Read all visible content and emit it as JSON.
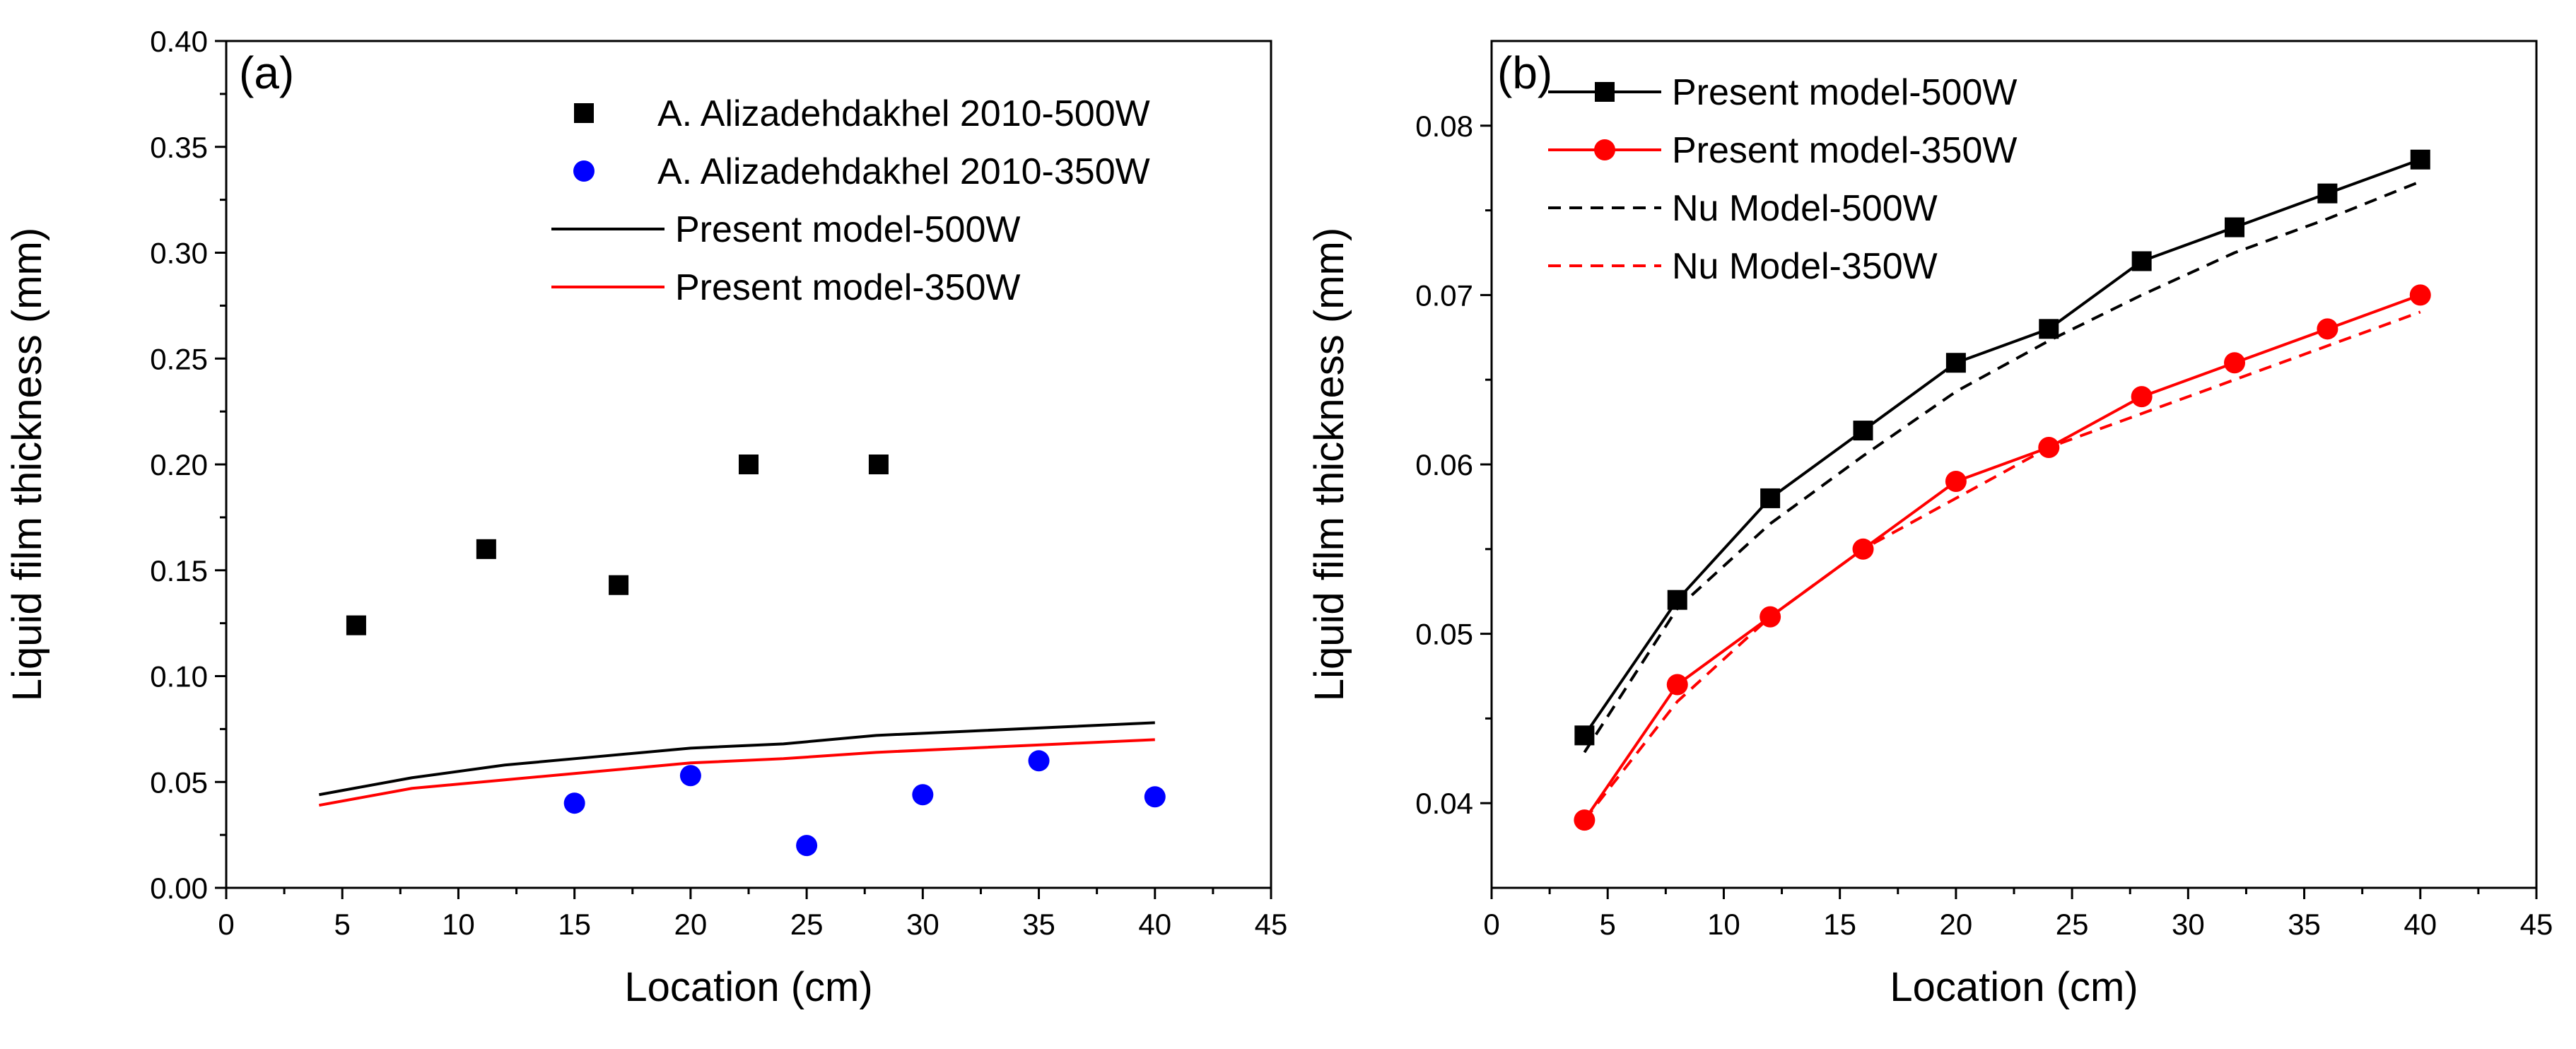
{
  "chart_data": [
    {
      "type": "scatter+line",
      "panel_label": "(a)",
      "xlabel": "Location (cm)",
      "ylabel": "Liquid film thickness (mm)",
      "xlim": [
        0,
        45
      ],
      "ylim": [
        0,
        0.4
      ],
      "x_ticks": [
        "0",
        "5",
        "10",
        "15",
        "20",
        "25",
        "30",
        "35",
        "40",
        "45"
      ],
      "y_ticks": [
        "0.00",
        "0.05",
        "0.10",
        "0.15",
        "0.20",
        "0.25",
        "0.30",
        "0.35",
        "0.40"
      ],
      "legend_position": "top-right",
      "series": [
        {
          "name": "A. Alizadehdakhel 2010-500W",
          "kind": "scatter",
          "marker": "square",
          "color": "#000000",
          "x": [
            5.6,
            11.2,
            16.9,
            22.5,
            28.1
          ],
          "y": [
            0.124,
            0.16,
            0.143,
            0.2,
            0.2
          ]
        },
        {
          "name": "A. Alizadehdakhel 2010-350W",
          "kind": "scatter",
          "marker": "circle",
          "color": "#0000ff",
          "x": [
            15,
            20,
            25,
            30,
            35,
            40
          ],
          "y": [
            0.04,
            0.053,
            0.02,
            0.044,
            0.06,
            0.043
          ]
        },
        {
          "name": "Present model-500W",
          "kind": "line",
          "color": "#000000",
          "x": [
            4,
            8,
            12,
            16,
            20,
            24,
            28,
            32,
            36,
            40
          ],
          "y": [
            0.044,
            0.052,
            0.058,
            0.062,
            0.066,
            0.068,
            0.072,
            0.074,
            0.076,
            0.078
          ]
        },
        {
          "name": "Present model-350W",
          "kind": "line",
          "color": "#ff0000",
          "x": [
            4,
            8,
            12,
            16,
            20,
            24,
            28,
            32,
            36,
            40
          ],
          "y": [
            0.039,
            0.047,
            0.051,
            0.055,
            0.059,
            0.061,
            0.064,
            0.066,
            0.068,
            0.07
          ]
        }
      ]
    },
    {
      "type": "line",
      "panel_label": "(b)",
      "xlabel": "Location (cm)",
      "ylabel": "Liquid film thickness (mm)",
      "xlim": [
        0,
        45
      ],
      "ylim": [
        0.035,
        0.085
      ],
      "x_ticks": [
        "0",
        "5",
        "10",
        "15",
        "20",
        "25",
        "30",
        "35",
        "40",
        "45"
      ],
      "y_ticks": [
        "0.04",
        "0.05",
        "0.06",
        "0.07",
        "0.08"
      ],
      "legend_position": "top-left",
      "series": [
        {
          "name": "Present model-500W",
          "kind": "line-marker",
          "marker": "square",
          "color": "#000000",
          "dash": false,
          "x": [
            4,
            8,
            12,
            16,
            20,
            24,
            28,
            32,
            36,
            40
          ],
          "y": [
            0.044,
            0.052,
            0.058,
            0.062,
            0.066,
            0.068,
            0.072,
            0.074,
            0.076,
            0.078
          ]
        },
        {
          "name": "Present model-350W",
          "kind": "line-marker",
          "marker": "circle",
          "color": "#ff0000",
          "dash": false,
          "x": [
            4,
            8,
            12,
            16,
            20,
            24,
            28,
            32,
            36,
            40
          ],
          "y": [
            0.039,
            0.047,
            0.051,
            0.055,
            0.059,
            0.061,
            0.064,
            0.066,
            0.068,
            0.07
          ]
        },
        {
          "name": "Nu Model-500W",
          "kind": "line",
          "color": "#000000",
          "dash": true,
          "x": [
            4,
            8,
            12,
            16,
            20,
            24,
            28,
            32,
            36,
            40
          ],
          "y": [
            0.043,
            0.0515,
            0.0565,
            0.0605,
            0.0643,
            0.0673,
            0.07,
            0.0725,
            0.0745,
            0.0767
          ]
        },
        {
          "name": "Nu Model-350W",
          "kind": "line",
          "color": "#ff0000",
          "dash": true,
          "x": [
            4,
            8,
            12,
            16,
            20,
            24,
            28,
            32,
            36,
            40
          ],
          "y": [
            0.039,
            0.046,
            0.051,
            0.055,
            0.058,
            0.061,
            0.063,
            0.065,
            0.067,
            0.069
          ]
        }
      ]
    }
  ]
}
